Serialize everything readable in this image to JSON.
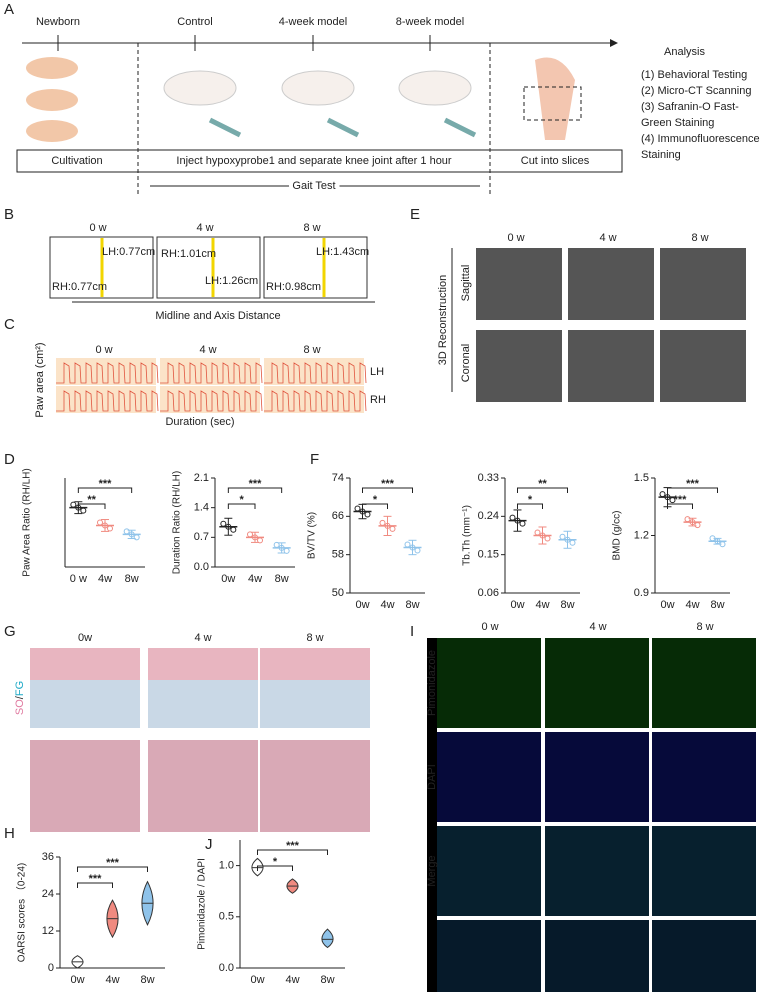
{
  "panel_a": {
    "letter": "A",
    "timeline": [
      "Newborn",
      "Control",
      "4-week model",
      "8-week model"
    ],
    "analysis_title": "Analysis",
    "analysis": [
      [
        "(1) Behavioral Testing"
      ],
      [
        "(2) Micro-CT Scanning"
      ],
      [
        "(3) Safranin-O Fast-",
        "Green Staining"
      ],
      [
        "(4) Immunofluorescence",
        "Staining"
      ]
    ],
    "steps": [
      "Cultivation",
      "Inject hypoxyprobe1 and separate knee joint after 1 hour",
      "Cut into slices"
    ],
    "gait": "Gait Test"
  },
  "panel_b": {
    "letter": "B",
    "times": [
      "0 w",
      "4 w",
      "8 w"
    ],
    "labels": [
      [
        "LH:0.77cm",
        "RH:0.77cm"
      ],
      [
        "RH:1.01cm",
        "LH:1.26cm"
      ],
      [
        "LH:1.43cm",
        "RH:0.98cm"
      ]
    ],
    "caption": "Midline and Axis Distance"
  },
  "panel_c": {
    "letter": "C",
    "times": [
      "0 w",
      "4 w",
      "8 w"
    ],
    "rows": [
      "LH",
      "RH"
    ],
    "ylabel": "Paw area (cm²)",
    "xlabel": "Duration (sec)"
  },
  "panel_e": {
    "letter": "E",
    "times": [
      "0 w",
      "4 w",
      "8 w"
    ],
    "group": "3D Reconstruction",
    "rows": [
      "Sagittal",
      "Coronal"
    ]
  },
  "panel_g": {
    "letter": "G",
    "times": [
      "0w",
      "4 w",
      "8 w"
    ],
    "stain": [
      "SO",
      "/",
      "FG"
    ]
  },
  "panel_i": {
    "letter": "I",
    "times": [
      "0 w",
      "4 w",
      "8 w"
    ],
    "rows": [
      "Pimonidazole",
      "DAPI",
      "Merge"
    ]
  },
  "letters": [
    "D",
    "F",
    "H",
    "J"
  ],
  "chart_data": [
    {
      "type": "dotplot",
      "ylabel": "Paw Area Ratio (RH/LH)",
      "categories": [
        "0 w",
        "4w",
        "8w"
      ],
      "values": [
        1.0,
        0.7,
        0.55
      ],
      "errors": [
        0.1,
        0.1,
        0.07
      ],
      "colors": [
        "#222222",
        "#f08a80",
        "#8fc3ea"
      ],
      "ylim": [
        0,
        1.5
      ],
      "yticks": [],
      "comparisons": [
        "**",
        "***"
      ]
    },
    {
      "type": "dotplot",
      "ylabel": "Duration Ratio (RH/LH)",
      "categories": [
        "0w",
        "4w",
        "8w"
      ],
      "values": [
        0.95,
        0.7,
        0.45
      ],
      "errors": [
        0.2,
        0.12,
        0.12
      ],
      "colors": [
        "#222222",
        "#f08a80",
        "#8fc3ea"
      ],
      "ylim": [
        0,
        2.1
      ],
      "yticks": [
        {
          "value": 0,
          "label": "0.0"
        },
        0.7,
        1.4,
        2.1
      ],
      "comparisons": [
        "*",
        "***"
      ]
    },
    {
      "type": "dotplot",
      "ylabel": "BV/TV (%)",
      "categories": [
        "0w",
        "4w",
        "8w"
      ],
      "values": [
        67,
        64,
        59.5
      ],
      "errors": [
        1.5,
        2,
        1.5
      ],
      "colors": [
        "#222222",
        "#f08a80",
        "#8fc3ea"
      ],
      "ylim": [
        50,
        74
      ],
      "yticks": [
        50,
        58,
        66,
        74
      ],
      "comparisons": [
        "*",
        "***"
      ]
    },
    {
      "type": "dotplot",
      "ylabel": "Tb.Th (mm⁻¹)",
      "categories": [
        "0w",
        "4w",
        "8w"
      ],
      "values": [
        0.23,
        0.195,
        0.185
      ],
      "errors": [
        0.025,
        0.02,
        0.02
      ],
      "colors": [
        "#222222",
        "#f08a80",
        "#8fc3ea"
      ],
      "ylim": [
        0.06,
        0.33
      ],
      "yticks": [
        0.06,
        {
          "value": 0.15,
          "label": "0.15"
        },
        0.24,
        0.33
      ],
      "comparisons": [
        "*",
        "**"
      ]
    },
    {
      "type": "dotplot",
      "ylabel": "BMD (g/cc)",
      "categories": [
        "0w",
        "4w",
        "8w"
      ],
      "values": [
        1.4,
        1.27,
        1.17
      ],
      "errors": [
        0.05,
        0.02,
        0.015
      ],
      "colors": [
        "#222222",
        "#f08a80",
        "#8fc3ea"
      ],
      "ylim": [
        0.9,
        1.5
      ],
      "yticks": [
        0.9,
        1.2,
        1.5
      ],
      "comparisons": [
        "***",
        "***"
      ]
    },
    {
      "type": "violin",
      "ylabel": "OARSI scores （0-24)",
      "categories": [
        "0w",
        "4w",
        "8w"
      ],
      "values": [
        2,
        16,
        21
      ],
      "min": [
        0,
        10,
        14
      ],
      "max": [
        4,
        22,
        28
      ],
      "colors": [
        "#ffffff",
        "#f08a80",
        "#8fc3ea"
      ],
      "ylim": [
        0,
        36
      ],
      "yticks": [
        0,
        12,
        24,
        36
      ],
      "comparisons": [
        "***",
        "***"
      ]
    },
    {
      "type": "violin",
      "ylabel": "Pimonidazole / DAPI",
      "categories": [
        "0w",
        "4w",
        "8w"
      ],
      "values": [
        0.98,
        0.8,
        0.28
      ],
      "min": [
        0.9,
        0.73,
        0.2
      ],
      "max": [
        1.07,
        0.87,
        0.38
      ],
      "colors": [
        "#ffffff",
        "#f08a80",
        "#8fc3ea"
      ],
      "ylim": [
        0,
        1.25
      ],
      "yticks": [
        {
          "value": 0,
          "label": "0.0"
        },
        {
          "value": 0.5,
          "label": "0.5"
        },
        {
          "value": 1,
          "label": "1.0"
        }
      ],
      "comparisons": [
        "*",
        "***"
      ]
    }
  ]
}
